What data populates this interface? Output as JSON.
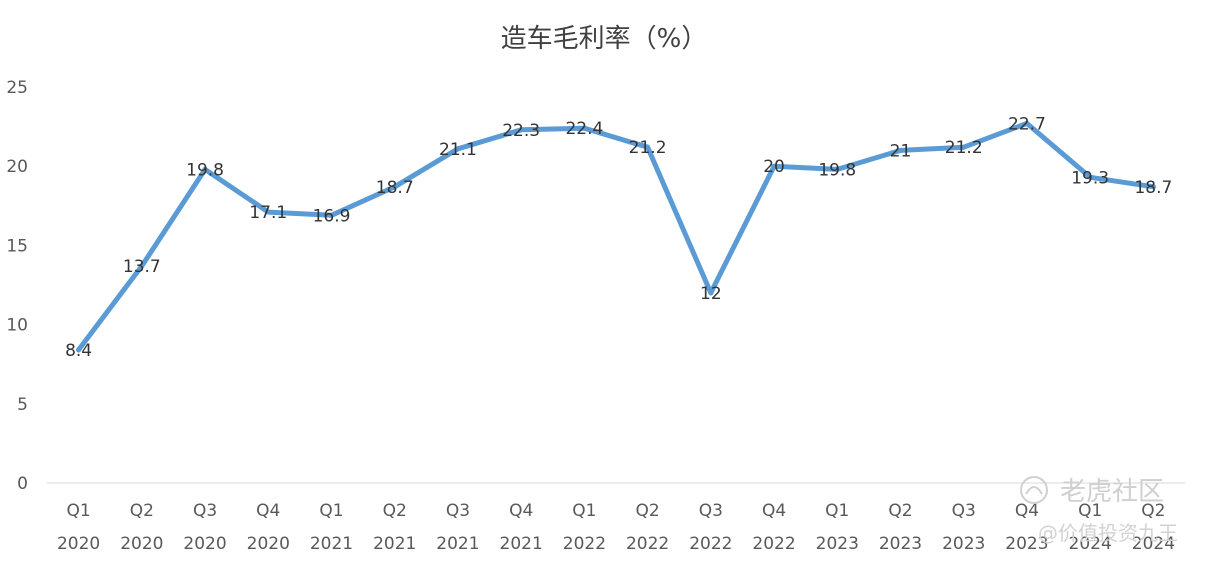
{
  "chart_data": {
    "type": "line",
    "title": "造车毛利率（%）",
    "xlabel": "",
    "ylabel": "",
    "ylim": [
      0,
      25
    ],
    "y_ticks": [
      "0",
      "5",
      "10",
      "15",
      "20",
      "25"
    ],
    "grid": false,
    "legend": "none",
    "categories": [
      [
        "Q1",
        "2020"
      ],
      [
        "Q2",
        "2020"
      ],
      [
        "Q3",
        "2020"
      ],
      [
        "Q4",
        "2020"
      ],
      [
        "Q1",
        "2021"
      ],
      [
        "Q2",
        "2021"
      ],
      [
        "Q3",
        "2021"
      ],
      [
        "Q4",
        "2021"
      ],
      [
        "Q1",
        "2022"
      ],
      [
        "Q2",
        "2022"
      ],
      [
        "Q3",
        "2022"
      ],
      [
        "Q4",
        "2022"
      ],
      [
        "Q1",
        "2023"
      ],
      [
        "Q2",
        "2023"
      ],
      [
        "Q3",
        "2023"
      ],
      [
        "Q4",
        "2023"
      ],
      [
        "Q1",
        "2024"
      ],
      [
        "Q2",
        "2024"
      ]
    ],
    "series": [
      {
        "values": [
          8.4,
          13.7,
          19.8,
          17.1,
          16.9,
          18.7,
          21.1,
          22.3,
          22.4,
          21.2,
          12,
          20,
          19.8,
          21,
          21.2,
          22.7,
          19.3,
          18.7
        ],
        "labels": [
          "8.4",
          "13.7",
          "19.8",
          "17.1",
          "16.9",
          "18.7",
          "21.1",
          "22.3",
          "22.4",
          "21.2",
          "12",
          "20",
          "19.8",
          "21",
          "21.2",
          "22.7",
          "19.3",
          "18.7"
        ],
        "color": "#5b9bd5"
      }
    ]
  },
  "watermark": {
    "brand": "老虎社区",
    "author": "@价值投资九王"
  }
}
